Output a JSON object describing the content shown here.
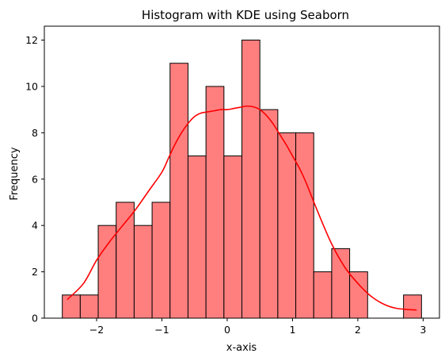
{
  "chart_data": {
    "type": "bar",
    "title": "Histogram with KDE using Seaborn",
    "xlabel": "x-axis",
    "ylabel": "Frequency",
    "bin_edges": [
      -2.525,
      -2.25,
      -1.975,
      -1.7,
      -1.425,
      -1.15,
      -0.875,
      -0.6,
      -0.325,
      -0.05,
      0.225,
      0.5,
      0.775,
      1.05,
      1.325,
      1.6,
      1.875,
      2.15,
      2.425,
      2.7,
      2.975
    ],
    "values": [
      1,
      1,
      4,
      5,
      4,
      5,
      11,
      7,
      10,
      7,
      12,
      9,
      8,
      8,
      2,
      3,
      2,
      0,
      0,
      1
    ],
    "kde": {
      "x": [
        -2.45,
        -2.2,
        -2.0,
        -1.8,
        -1.6,
        -1.4,
        -1.2,
        -1.0,
        -0.9,
        -0.8,
        -0.7,
        -0.6,
        -0.5,
        -0.4,
        -0.3,
        -0.2,
        -0.1,
        0.0,
        0.1,
        0.2,
        0.3,
        0.4,
        0.5,
        0.6,
        0.7,
        0.8,
        0.9,
        1.0,
        1.1,
        1.2,
        1.4,
        1.6,
        1.8,
        2.0,
        2.2,
        2.4,
        2.6,
        2.9
      ],
      "y": [
        0.8,
        1.5,
        2.5,
        3.3,
        4.0,
        4.7,
        5.5,
        6.3,
        6.9,
        7.5,
        8.0,
        8.4,
        8.7,
        8.85,
        8.9,
        8.95,
        9.0,
        9.0,
        9.05,
        9.1,
        9.15,
        9.12,
        9.0,
        8.75,
        8.4,
        7.95,
        7.5,
        7.0,
        6.5,
        5.9,
        4.5,
        3.2,
        2.2,
        1.5,
        0.95,
        0.6,
        0.42,
        0.35
      ]
    },
    "xlim": [
      -2.8,
      3.25
    ],
    "ylim": [
      0,
      12.6
    ],
    "xticks": [
      -2,
      -1,
      0,
      1,
      2,
      3
    ],
    "yticks": [
      0,
      2,
      4,
      6,
      8,
      10,
      12
    ],
    "bar_color": "#ff7f7f",
    "bar_edge_color": "#000000",
    "kde_color": "#ff0000",
    "grid": false
  }
}
